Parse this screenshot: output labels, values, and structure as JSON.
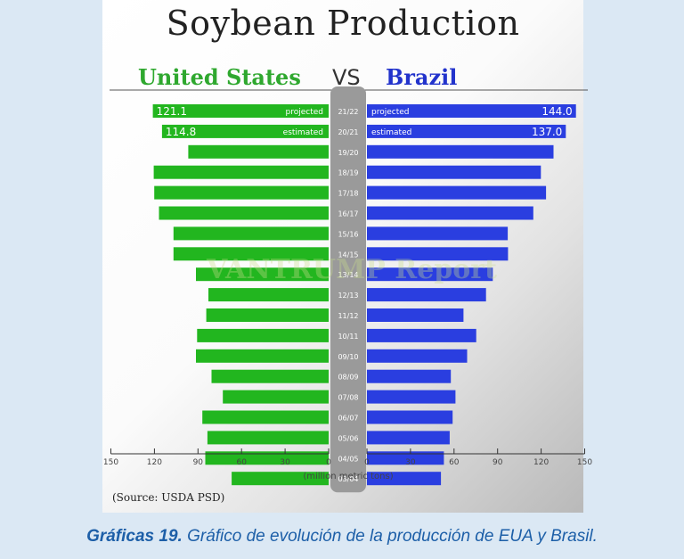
{
  "title": "Soybean Production",
  "left_header": "United States",
  "vs_label": "VS",
  "right_header": "Brazil",
  "source_note": "(Source: USDA PSD)",
  "watermark": "VANTRUMP Report",
  "caption": {
    "label": "Gráficas 19.",
    "text": "Gráfico de evolución de la producción de EUA y Brasil."
  },
  "colors": {
    "us": "#22b61f",
    "brazil": "#2a3ee0",
    "center": "#9a9a9a",
    "caption": "#1d5fa8"
  },
  "chart_data": {
    "type": "bar",
    "title": "Soybean Production",
    "xlabel": "(million metric tons)",
    "xlim": [
      0,
      150
    ],
    "x_ticks": [
      "150",
      "120",
      "90",
      "60",
      "30",
      "0",
      "0",
      "30",
      "60",
      "90",
      "120",
      "150"
    ],
    "categories": [
      "21/22",
      "20/21",
      "19/20",
      "18/19",
      "17/18",
      "16/17",
      "15/16",
      "14/15",
      "13/14",
      "12/13",
      "11/12",
      "10/11",
      "09/10",
      "08/09",
      "07/08",
      "06/07",
      "05/06",
      "04/05",
      "03/04"
    ],
    "series": [
      {
        "name": "United States",
        "values": [
          121.1,
          114.8,
          96.7,
          120.5,
          120.1,
          116.9,
          106.9,
          106.9,
          91.4,
          82.8,
          84.3,
          90.6,
          91.4,
          80.7,
          72.9,
          87.0,
          83.5,
          85.0,
          66.8
        ]
      },
      {
        "name": "Brazil",
        "values": [
          144.0,
          137.0,
          128.5,
          119.8,
          123.4,
          114.6,
          97.0,
          97.2,
          86.7,
          82.0,
          66.5,
          75.3,
          69.0,
          57.8,
          61.0,
          59.0,
          57.0,
          53.0,
          51.0
        ]
      }
    ],
    "bar_labels": {
      "21/22": {
        "us_value": "121.1",
        "us_tag": "projected",
        "br_value": "144.0",
        "br_tag": "projected"
      },
      "20/21": {
        "us_value": "114.8",
        "us_tag": "estimated",
        "br_value": "137.0",
        "br_tag": "estimated"
      }
    }
  }
}
